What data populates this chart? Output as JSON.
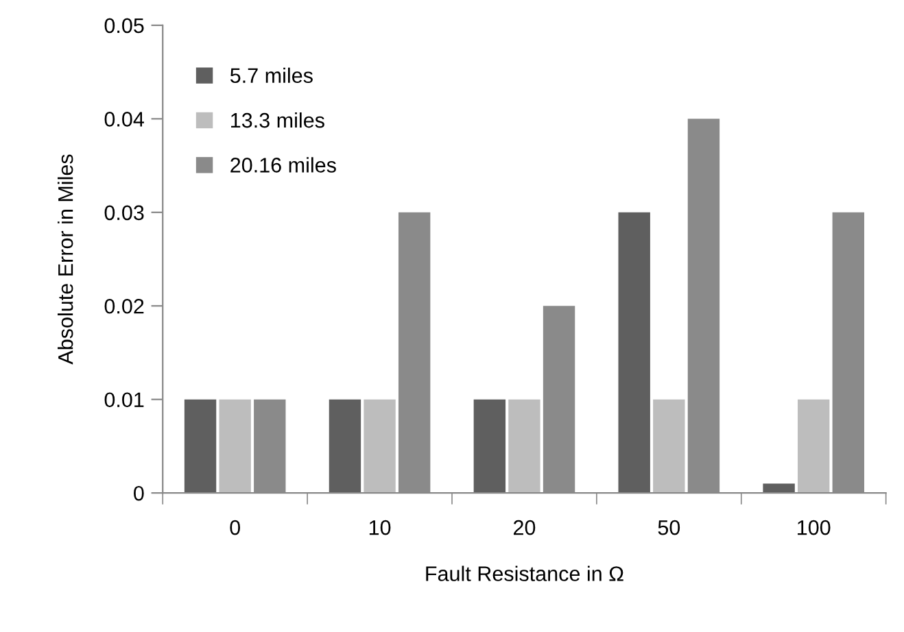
{
  "chart_data": {
    "type": "bar",
    "xlabel": "Fault Resistance in Ω",
    "ylabel": "Absolute Error in Miles",
    "categories": [
      "0",
      "10",
      "20",
      "50",
      "100"
    ],
    "series": [
      {
        "name": "5.7 miles",
        "color": "#5f5f5f",
        "values": [
          0.01,
          0.01,
          0.01,
          0.03,
          0.001
        ]
      },
      {
        "name": "13.3 miles",
        "color": "#bdbdbd",
        "values": [
          0.01,
          0.01,
          0.01,
          0.01,
          0.01
        ]
      },
      {
        "name": "20.16 miles",
        "color": "#8a8a8a",
        "values": [
          0.01,
          0.03,
          0.02,
          0.04,
          0.03
        ]
      }
    ],
    "ylim": [
      0,
      0.05
    ],
    "yticks": [
      0,
      0.01,
      0.02,
      0.03,
      0.04,
      0.05
    ],
    "grid": false,
    "legend": "top left"
  }
}
